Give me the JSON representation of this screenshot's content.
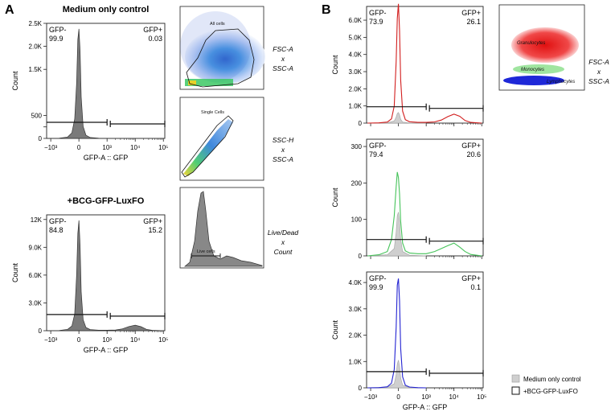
{
  "panel_labels": {
    "a": "A",
    "b": "B"
  },
  "gating_labels": {
    "a1": [
      "FSC-A",
      "x",
      "SSC-A"
    ],
    "a2": [
      "SSC-H",
      "x",
      "SSC-A"
    ],
    "a3": [
      "Live/Dead",
      "x",
      "Count"
    ],
    "b": [
      "FSC-A",
      "x",
      "SSC-A"
    ]
  },
  "gate_names": {
    "all_cells": "All cells",
    "single_cells": "Single Cells",
    "live_cells": "Live cells",
    "granulocytes": "Granulocytes",
    "monocytes": "Monocytes",
    "lymphocytes": "Lymphocytes"
  },
  "legend": {
    "items": [
      {
        "label": "Medium only control",
        "color": "#cfcfcf"
      },
      {
        "label": "+BCG-GFP-LuxFO",
        "color": "#ffffff"
      }
    ]
  },
  "colors": {
    "gray": "#7a7a7a",
    "red": "#d21e1e",
    "green": "#46c35a",
    "blue": "#2323d2"
  },
  "chart_data": [
    {
      "type": "area",
      "id": "A_top",
      "title": "Medium only control",
      "xlabel": "GFP-A :: GFP",
      "ylabel": "Count",
      "yticks": [
        0,
        250,
        500,
        1500,
        2000,
        2500
      ],
      "ytick_labels": [
        "0",
        "",
        "500",
        "1.5K",
        "2.0K",
        "2.5K"
      ],
      "ylim": [
        0,
        2500
      ],
      "xticks": [
        -1000,
        0,
        1000,
        10000,
        100000
      ],
      "xtick_labels": [
        "-10^3",
        "0",
        "10^3",
        "10^4",
        "10^5"
      ],
      "gates": [
        {
          "label": "GFP-",
          "value": "99.9"
        },
        {
          "label": "GFP+",
          "value": "0.03"
        }
      ],
      "series": [
        {
          "name": "Medium only control",
          "color": "#7a7a7a",
          "x": [
            -1300,
            -700,
            -400,
            -250,
            -150,
            -80,
            -40,
            0,
            40,
            80,
            150,
            250,
            400,
            700,
            1000
          ],
          "y": [
            0,
            5,
            30,
            120,
            420,
            1200,
            2150,
            2380,
            1900,
            900,
            260,
            70,
            20,
            5,
            0
          ]
        }
      ]
    },
    {
      "type": "area",
      "id": "A_bottom",
      "title": "+BCG-GFP-LuxFO",
      "xlabel": "GFP-A :: GFP",
      "ylabel": "Count",
      "yticks": [
        0,
        3000,
        6000,
        9000,
        12000
      ],
      "ytick_labels": [
        "0",
        "3.0K",
        "6.0K",
        "9.0K",
        "12K"
      ],
      "ylim": [
        0,
        12500
      ],
      "xticks": [
        -1000,
        0,
        1000,
        10000,
        100000
      ],
      "xtick_labels": [
        "-10^3",
        "0",
        "10^3",
        "10^4",
        "10^5"
      ],
      "gates": [
        {
          "label": "GFP-",
          "value": "84.8"
        },
        {
          "label": "GFP+",
          "value": "15.2"
        }
      ],
      "series": [
        {
          "name": "+BCG-GFP-LuxFO",
          "color": "#7a7a7a",
          "x": [
            -1300,
            -700,
            -400,
            -250,
            -150,
            -80,
            -40,
            0,
            40,
            80,
            150,
            250,
            400,
            700,
            1000,
            2000,
            3500,
            6000,
            10000,
            16000,
            25000,
            40000,
            100000
          ],
          "y": [
            0,
            30,
            150,
            500,
            1800,
            6000,
            10500,
            11900,
            9200,
            4200,
            1200,
            350,
            120,
            60,
            50,
            80,
            200,
            450,
            600,
            430,
            150,
            40,
            0
          ]
        }
      ]
    },
    {
      "type": "line",
      "id": "B_red",
      "xlabel": "",
      "ylabel": "Count",
      "yticks": [
        0,
        1000,
        2000,
        3000,
        4000,
        5000,
        6000
      ],
      "ytick_labels": [
        "0",
        "1.0K",
        "2.0K",
        "3.0K",
        "4.0K",
        "5.0K",
        "6.0K"
      ],
      "ylim": [
        0,
        6800
      ],
      "xticks": [],
      "xtick_labels": [],
      "gates": [
        {
          "label": "GFP-",
          "value": "73.9"
        },
        {
          "label": "GFP+",
          "value": "26.1"
        }
      ],
      "series": [
        {
          "name": "Medium only control",
          "color": "#cfcfcf",
          "fill": true,
          "x": [
            -1300,
            -400,
            -150,
            -80,
            -40,
            0,
            40,
            80,
            150,
            400,
            1000
          ],
          "y": [
            0,
            20,
            120,
            350,
            560,
            620,
            480,
            220,
            60,
            10,
            0
          ]
        },
        {
          "name": "+BCG-GFP-LuxFO",
          "color": "#d21e1e",
          "fill": false,
          "x": [
            -1300,
            -700,
            -400,
            -250,
            -150,
            -80,
            -40,
            0,
            40,
            80,
            150,
            250,
            400,
            700,
            1000,
            2000,
            3500,
            6000,
            10000,
            16000,
            25000,
            40000,
            100000
          ],
          "y": [
            0,
            15,
            60,
            250,
            1000,
            3600,
            6100,
            6950,
            5400,
            2500,
            700,
            200,
            80,
            40,
            40,
            70,
            180,
            380,
            520,
            400,
            150,
            40,
            0
          ]
        }
      ]
    },
    {
      "type": "line",
      "id": "B_green",
      "xlabel": "",
      "ylabel": "Count",
      "yticks": [
        0,
        100,
        200,
        300
      ],
      "ytick_labels": [
        "0",
        "100",
        "200",
        "300"
      ],
      "ylim": [
        0,
        320
      ],
      "xticks": [],
      "xtick_labels": [],
      "gates": [
        {
          "label": "GFP-",
          "value": "79.4"
        },
        {
          "label": "GFP+",
          "value": "20.6"
        }
      ],
      "series": [
        {
          "name": "Medium only control",
          "color": "#cfcfcf",
          "fill": true,
          "x": [
            -1300,
            -400,
            -150,
            -80,
            -40,
            0,
            40,
            80,
            150,
            400,
            1000
          ],
          "y": [
            0,
            3,
            20,
            65,
            110,
            120,
            95,
            45,
            12,
            2,
            0
          ]
        },
        {
          "name": "+BCG-GFP-LuxFO",
          "color": "#46c35a",
          "fill": false,
          "x": [
            -1300,
            -700,
            -400,
            -250,
            -150,
            -80,
            -40,
            0,
            40,
            80,
            150,
            250,
            400,
            700,
            1000,
            2000,
            3500,
            6000,
            10000,
            16000,
            25000,
            40000,
            100000
          ],
          "y": [
            0,
            3,
            12,
            45,
            110,
            190,
            230,
            215,
            170,
            95,
            35,
            14,
            8,
            6,
            6,
            12,
            20,
            28,
            35,
            24,
            12,
            4,
            0
          ]
        }
      ]
    },
    {
      "type": "line",
      "id": "B_blue",
      "xlabel": "GFP-A :: GFP",
      "ylabel": "Count",
      "yticks": [
        0,
        1000,
        2000,
        3000,
        4000
      ],
      "ytick_labels": [
        "0",
        "1.0K",
        "2.0K",
        "3.0K",
        "4.0K"
      ],
      "ylim": [
        0,
        4400
      ],
      "xticks": [
        -1000,
        0,
        1000,
        10000,
        100000
      ],
      "xtick_labels": [
        "-10^3",
        "0",
        "10^3",
        "10^4",
        "10^5"
      ],
      "gates": [
        {
          "label": "GFP-",
          "value": "99.9"
        },
        {
          "label": "GFP+",
          "value": "0.1"
        }
      ],
      "series": [
        {
          "name": "Medium only control",
          "color": "#cfcfcf",
          "fill": true,
          "x": [
            -1300,
            -400,
            -150,
            -80,
            -40,
            0,
            40,
            80,
            150,
            400,
            1000
          ],
          "y": [
            0,
            30,
            150,
            500,
            900,
            1050,
            820,
            380,
            100,
            15,
            0
          ]
        },
        {
          "name": "+BCG-GFP-LuxFO",
          "color": "#2323d2",
          "fill": false,
          "x": [
            -1300,
            -700,
            -400,
            -250,
            -150,
            -80,
            -40,
            0,
            40,
            80,
            150,
            250,
            400,
            700,
            1000
          ],
          "y": [
            0,
            5,
            40,
            180,
            700,
            2300,
            3900,
            4150,
            3300,
            1500,
            420,
            100,
            30,
            5,
            0
          ]
        }
      ]
    }
  ]
}
